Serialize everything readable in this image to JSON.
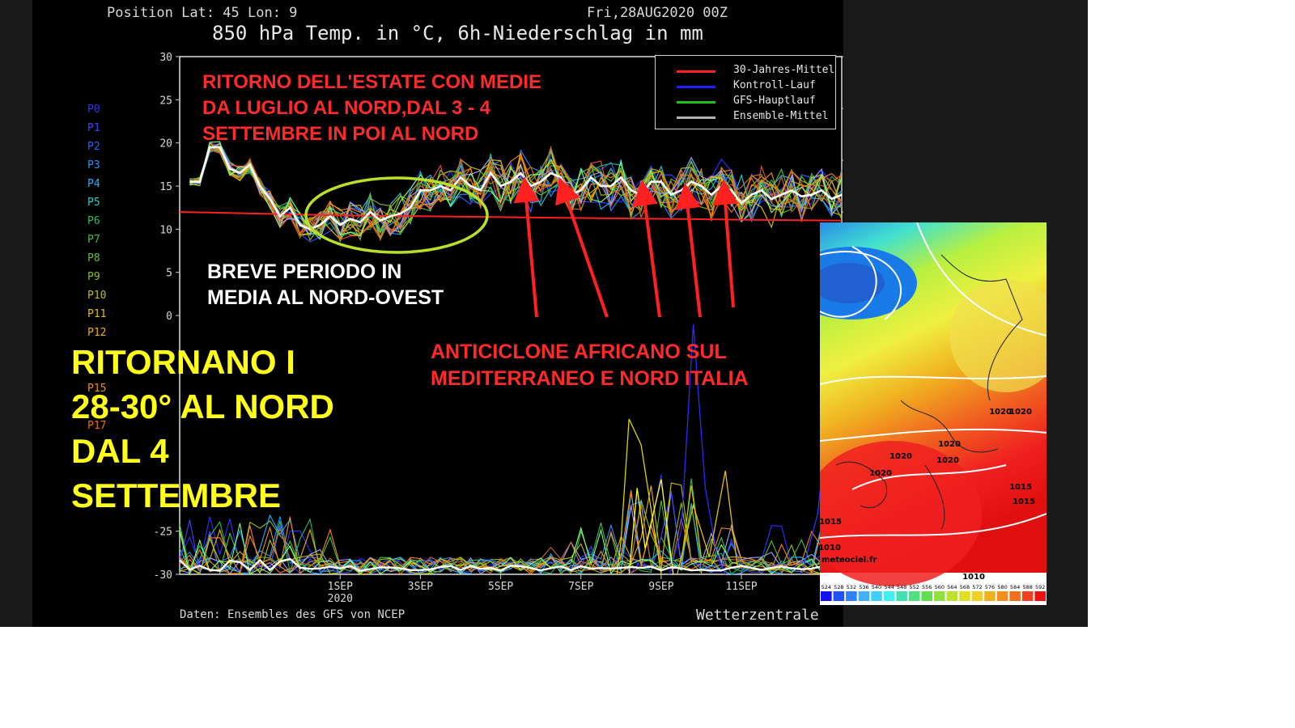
{
  "header": {
    "position": "Position   Lat: 45 Lon: 9",
    "date": "Fri,28AUG2020 00Z",
    "title": "850 hPa Temp. in °C, 6h-Niederschlag in mm"
  },
  "footer": {
    "source": "Daten: Ensembles des GFS von NCEP",
    "brand": "Wetterzentrale"
  },
  "legend": [
    {
      "label": "30-Jahres-Mittel",
      "color": "#ff2020"
    },
    {
      "label": "Kontroll-Lauf",
      "color": "#2020ff"
    },
    {
      "label": "GFS-Hauptlauf",
      "color": "#20c020"
    },
    {
      "label": "Ensemble-Mittel",
      "color": "#b0b0b0"
    }
  ],
  "members": [
    {
      "label": "P0",
      "color": "#3030ff"
    },
    {
      "label": "P1",
      "color": "#4040ff"
    },
    {
      "label": "P2",
      "color": "#3060ff"
    },
    {
      "label": "P3",
      "color": "#2090ff"
    },
    {
      "label": "P4",
      "color": "#20b0ff"
    },
    {
      "label": "P5",
      "color": "#20d0d0"
    },
    {
      "label": "P6",
      "color": "#20c060"
    },
    {
      "label": "P7",
      "color": "#40c040"
    },
    {
      "label": "P8",
      "color": "#60c020"
    },
    {
      "label": "P9",
      "color": "#90c020"
    },
    {
      "label": "P10",
      "color": "#c0c000"
    },
    {
      "label": "P11",
      "color": "#e0c000"
    },
    {
      "label": "P12",
      "color": "#f0b000"
    },
    {
      "label": "P15",
      "color": "#f09000"
    },
    {
      "label": "P17",
      "color": "#f07000"
    }
  ],
  "annotations": {
    "red_top": [
      "RITORNO DELL'ESTATE CON MEDIE",
      "DA LUGLIO AL NORD,DAL 3 - 4",
      "SETTEMBRE IN POI AL NORD"
    ],
    "white_mid": [
      "BREVE PERIODO IN",
      "MEDIA AL NORD-OVEST"
    ],
    "yellow_left": [
      "RITORNANO I",
      "28-30° AL NORD",
      "DAL 4",
      "SETTEMBRE"
    ],
    "red_bottom": [
      "ANTICICLONE AFRICANO SUL",
      "MEDITERRANEO E NORD ITALIA"
    ]
  },
  "map": {
    "credit": "meteociel.fr",
    "isobars": [
      "1020",
      "1020",
      "1020",
      "1020",
      "1020",
      "1020",
      "1015",
      "1015",
      "1015",
      "1010",
      "1010"
    ],
    "scale": [
      "524",
      "528",
      "532",
      "536",
      "540",
      "544",
      "548",
      "552",
      "556",
      "560",
      "564",
      "568",
      "572",
      "576",
      "580",
      "584",
      "588",
      "592"
    ],
    "scale_colors": [
      "#1010ff",
      "#2050ff",
      "#3080ff",
      "#40b0ff",
      "#40d0ff",
      "#40f0f0",
      "#40e0b0",
      "#50e080",
      "#60e050",
      "#90e040",
      "#c0e030",
      "#e0e020",
      "#f0d020",
      "#f0b020",
      "#f09020",
      "#f07020",
      "#f04020",
      "#f01010"
    ]
  },
  "chart_data": {
    "type": "line",
    "title": "850 hPa Temp. in °C, 6h-Niederschlag in mm",
    "xlabel": "",
    "ylabel": "",
    "ylim": [
      -30,
      30
    ],
    "y2lim": [
      35,
      50
    ],
    "yticks": [
      30,
      25,
      20,
      15,
      10,
      5,
      0,
      -25,
      -30
    ],
    "y2ticks": [
      50,
      45,
      40,
      35
    ],
    "xlim": [
      0,
      16.5
    ],
    "x_ticks": [
      {
        "x": 4,
        "label": "1SEP"
      },
      {
        "x": 6,
        "label": "3SEP"
      },
      {
        "x": 8,
        "label": "5SEP"
      },
      {
        "x": 10,
        "label": "7SEP"
      },
      {
        "x": 12,
        "label": "9SEP"
      },
      {
        "x": 14,
        "label": "11SEP"
      }
    ],
    "year_label": "2020",
    "climatology_x": [
      0,
      2,
      4,
      6,
      8,
      10,
      12,
      14,
      16.5
    ],
    "climatology": [
      12,
      11.8,
      11.6,
      11.5,
      11.4,
      11.3,
      11.2,
      11.1,
      11.0
    ],
    "ensemble_mean_x": [
      0.25,
      0.5,
      0.75,
      1,
      1.25,
      1.5,
      1.75,
      2,
      2.25,
      2.5,
      2.75,
      3,
      3.25,
      3.5,
      3.75,
      4,
      4.25,
      4.5,
      4.75,
      5,
      5.25,
      5.5,
      5.75,
      6,
      6.25,
      6.5,
      6.75,
      7,
      7.25,
      7.5,
      7.75,
      8,
      8.25,
      8.5,
      8.75,
      9,
      9.25,
      9.5,
      9.75,
      10,
      10.25,
      10.5,
      10.75,
      11,
      11.25,
      11.5,
      11.75,
      12,
      12.25,
      12.5,
      12.75,
      13,
      13.25,
      13.5,
      13.75,
      14,
      14.25,
      14.5,
      14.75,
      15,
      15.25,
      15.5,
      15.75,
      16,
      16.25,
      16.5
    ],
    "ensemble_mean": [
      15.5,
      15.5,
      19.5,
      19.5,
      17,
      16.5,
      17.5,
      15,
      13.5,
      11.5,
      12.5,
      10.5,
      10,
      10.5,
      11.5,
      10.5,
      11.2,
      10.8,
      12,
      11,
      11.5,
      11.8,
      12.5,
      14.5,
      14.5,
      15,
      14.5,
      16,
      15,
      14.5,
      16.5,
      15,
      15.5,
      16.5,
      15,
      15.5,
      16.5,
      16,
      14,
      14.5,
      16,
      15,
      15,
      16,
      14.5,
      14,
      15.5,
      15.5,
      14,
      14.5,
      15.5,
      15,
      14,
      15,
      14.5,
      13,
      14,
      14.5,
      13.5,
      14,
      14.5,
      13.8,
      14,
      14.5,
      13.5,
      14
    ],
    "ensemble_members": 20,
    "precip_note": "6h precipitation spikes near 8-10 SEP (up to ~-1 °C axis equivalent)"
  }
}
